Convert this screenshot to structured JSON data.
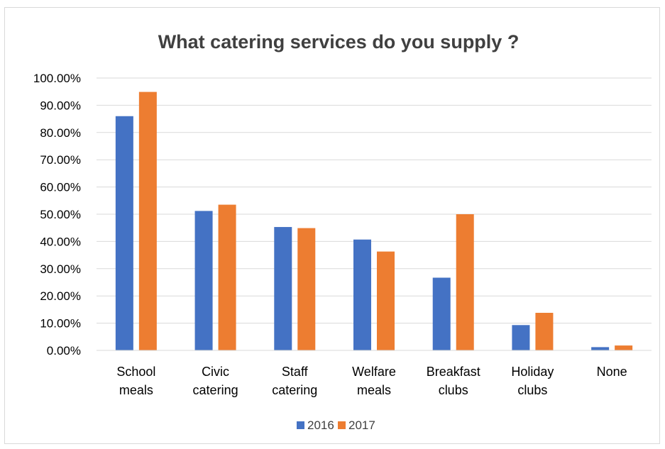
{
  "chart_data": {
    "type": "bar",
    "title": "What catering services do you supply ?",
    "categories": [
      [
        "School",
        "meals"
      ],
      [
        "Civic",
        "catering"
      ],
      [
        "Staff",
        "catering"
      ],
      [
        "Welfare",
        "meals"
      ],
      [
        "Breakfast",
        "clubs"
      ],
      [
        "Holiday",
        "clubs"
      ],
      [
        "None"
      ]
    ],
    "series": [
      {
        "name": "2016",
        "color": "#4472c4",
        "values": [
          86.0,
          51.2,
          45.3,
          40.7,
          26.7,
          9.3,
          1.2
        ]
      },
      {
        "name": "2017",
        "color": "#ed7d31",
        "values": [
          94.9,
          53.5,
          44.9,
          36.3,
          50.0,
          13.8,
          1.8
        ]
      }
    ],
    "ylim": [
      0,
      100
    ],
    "y_ticks": [
      "0.00%",
      "10.00%",
      "20.00%",
      "30.00%",
      "40.00%",
      "50.00%",
      "60.00%",
      "70.00%",
      "80.00%",
      "90.00%",
      "100.00%"
    ],
    "grid": true,
    "legend_position": "bottom"
  }
}
